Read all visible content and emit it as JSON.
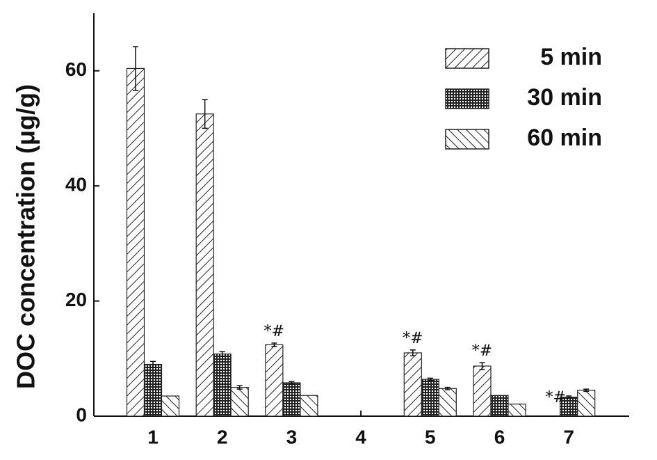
{
  "chart_data": {
    "type": "bar",
    "y_label": "DOC concentration (μg/g)",
    "categories": [
      "1",
      "2",
      "3",
      "4",
      "5",
      "6",
      "7"
    ],
    "ylim": [
      0,
      70
    ],
    "yticks": [
      0,
      20,
      40,
      60
    ],
    "series": [
      {
        "name": "5 min",
        "color": "#222222",
        "pattern": "forward",
        "values": [
          60.4,
          52.5,
          12.4,
          null,
          11.0,
          8.7,
          null
        ],
        "errors": [
          3.8,
          2.5,
          0.3,
          null,
          0.5,
          0.6,
          null
        ]
      },
      {
        "name": "30 min",
        "color": "#222222",
        "pattern": "cross",
        "values": [
          9.0,
          10.8,
          5.8,
          null,
          6.4,
          3.6,
          3.3
        ],
        "errors": [
          0.5,
          0.4,
          0.2,
          null,
          0.2,
          null,
          0.2
        ]
      },
      {
        "name": "60 min",
        "color": "#222222",
        "pattern": "back",
        "values": [
          3.5,
          5.0,
          3.6,
          null,
          4.8,
          2.1,
          4.5
        ],
        "errors": [
          null,
          0.3,
          null,
          null,
          0.2,
          null,
          0.2
        ]
      }
    ],
    "annotations": [
      "*#",
      "*#",
      "*#",
      "*#"
    ],
    "legend": "upper right"
  }
}
